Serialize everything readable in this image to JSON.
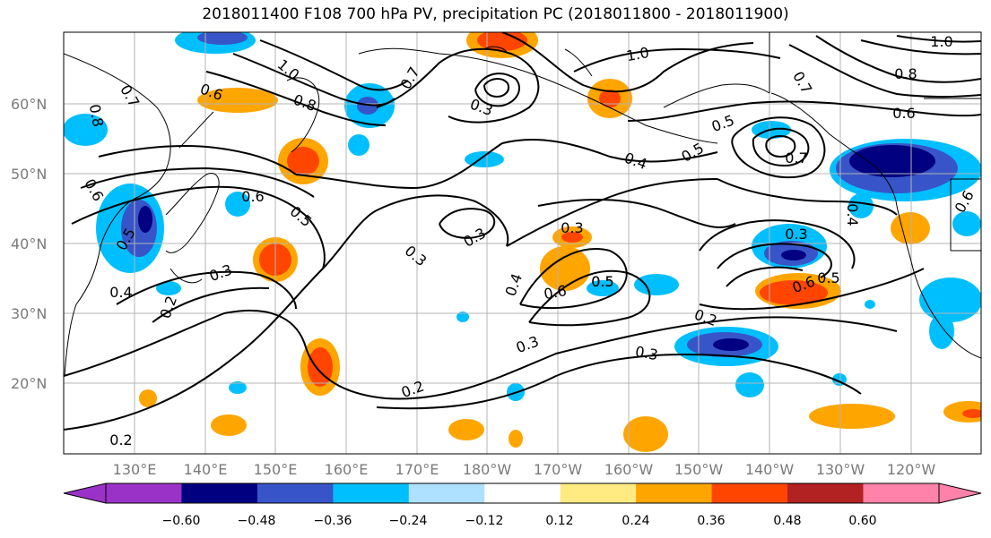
{
  "title": "2018011400 F108 700 hPa PV, precipitation PC (2018011800 - 2018011900)",
  "map": {
    "lat_labels": [
      "20°N",
      "30°N",
      "40°N",
      "50°N",
      "60°N"
    ],
    "lon_labels": [
      "130°E",
      "140°E",
      "150°E",
      "160°E",
      "170°E",
      "180°W",
      "170°W",
      "160°W",
      "150°W",
      "140°W",
      "130°W",
      "120°W"
    ],
    "contour_labels": [
      "0.7",
      "0.8",
      "0.6",
      "1.0",
      "0.8",
      "0.7",
      "0.3",
      "1.0",
      "1.0",
      "0.8",
      "0.6",
      "0.7",
      "0.5",
      "0.4",
      "0.5",
      "0.7",
      "0.6",
      "0.5",
      "0.5",
      "0.6",
      "0.3",
      "0.3",
      "0.2",
      "0.4",
      "0.6",
      "0.5",
      "0.3",
      "0.3",
      "0.3",
      "0.6",
      "0.5",
      "0.2",
      "0.3",
      "0.2",
      "0.4",
      "0.2",
      "0.4",
      "0.6",
      "0.3",
      "0.5"
    ]
  },
  "colorbar": {
    "tick_labels": [
      "−0.60",
      "−0.48",
      "−0.36",
      "−0.24",
      "−0.12",
      "0.12",
      "0.24",
      "0.36",
      "0.48",
      "0.60"
    ],
    "colors": [
      "#9b32c8",
      "#000080",
      "#3755c8",
      "#00bfff",
      "#aee0ff",
      "#ffffff",
      "#ffeb82",
      "#ffa500",
      "#ff4500",
      "#b22222",
      "#ff82aa"
    ]
  }
}
